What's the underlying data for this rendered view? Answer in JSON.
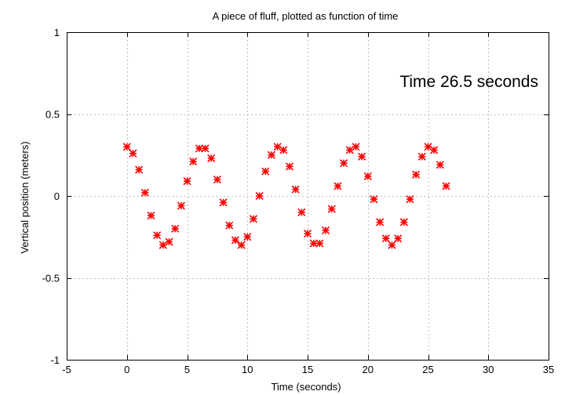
{
  "chart_data": {
    "type": "scatter",
    "title": "A piece of fluff, plotted as function of time",
    "xlabel": "Time (seconds)",
    "ylabel": "Vertical position (meters)",
    "xlim": [
      -5,
      35
    ],
    "ylim": [
      -1,
      1
    ],
    "xticks": [
      -5,
      0,
      5,
      10,
      15,
      20,
      25,
      30,
      35
    ],
    "xtick_labels": [
      "-5",
      "0",
      "5",
      "10",
      "15",
      "20",
      "25",
      "30",
      "35"
    ],
    "yticks": [
      -1,
      -0.5,
      0,
      0.5,
      1
    ],
    "ytick_labels": [
      "-1",
      "-0.5",
      "0",
      "0.5",
      "1"
    ],
    "grid": true,
    "marker": "asterisk",
    "marker_color": "#ff0000",
    "annotation": "Time 26.5 seconds",
    "x": [
      0,
      0.5,
      1,
      1.5,
      2,
      2.5,
      3,
      3.5,
      4,
      4.5,
      5,
      5.5,
      6,
      6.5,
      7,
      7.5,
      8,
      8.5,
      9,
      9.5,
      10,
      10.5,
      11,
      11.5,
      12,
      12.5,
      13,
      13.5,
      14,
      14.5,
      15,
      15.5,
      16,
      16.5,
      17,
      17.5,
      18,
      18.5,
      19,
      19.5,
      20,
      20.5,
      21,
      21.5,
      22,
      22.5,
      23,
      23.5,
      24,
      24.5,
      25,
      25.5,
      26,
      26.5
    ],
    "y": [
      0.3,
      0.26,
      0.16,
      0.02,
      -0.12,
      -0.24,
      -0.3,
      -0.28,
      -0.2,
      -0.06,
      0.09,
      0.21,
      0.29,
      0.29,
      0.23,
      0.1,
      -0.04,
      -0.18,
      -0.27,
      -0.3,
      -0.25,
      -0.14,
      0.0,
      0.15,
      0.25,
      0.3,
      0.28,
      0.18,
      0.04,
      -0.1,
      -0.23,
      -0.29,
      -0.29,
      -0.21,
      -0.08,
      0.06,
      0.2,
      0.28,
      0.3,
      0.24,
      0.12,
      -0.02,
      -0.16,
      -0.26,
      -0.3,
      -0.26,
      -0.16,
      -0.02,
      0.13,
      0.24,
      0.3,
      0.28,
      0.19,
      0.06
    ]
  }
}
